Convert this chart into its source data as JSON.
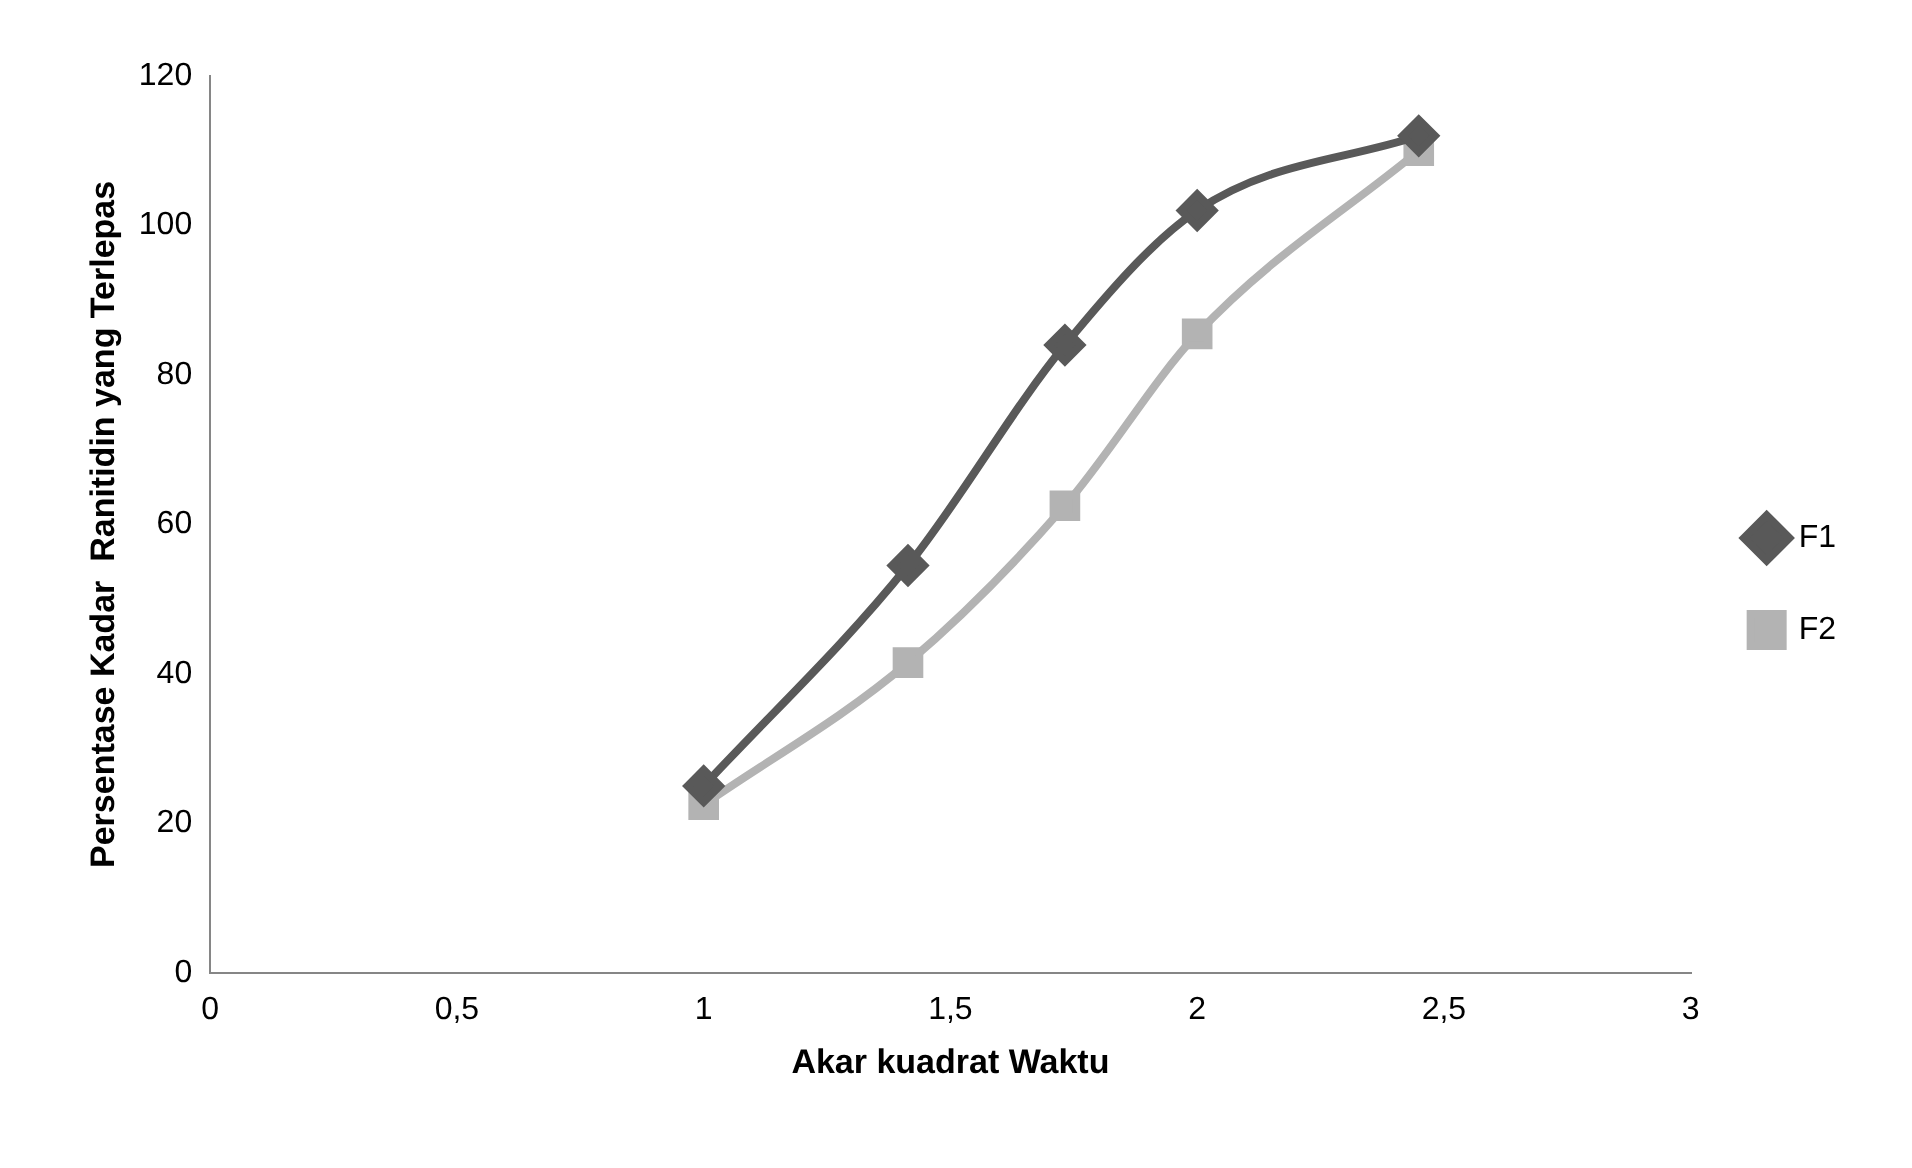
{
  "chart_data": {
    "type": "line",
    "xlabel": "Akar kuadrat Waktu",
    "ylabel": "Persentase Kadar  Ranitidin yang Terlepas",
    "xlim": [
      0,
      3
    ],
    "xticks": [
      0,
      {
        "value": 0.5,
        "label": "0,5"
      },
      1,
      {
        "value": 1.5,
        "label": "1,5"
      },
      2,
      {
        "value": 2.5,
        "label": "2,5"
      },
      3
    ],
    "ylim": [
      0,
      120
    ],
    "yticks": [
      0,
      20,
      40,
      60,
      80,
      100,
      120
    ],
    "grid": false,
    "legend": "right",
    "series": [
      {
        "name": "F1",
        "color": "#595959",
        "marker": "diamond",
        "x": [
          1,
          1.414,
          1.732,
          2,
          2.449
        ],
        "values": [
          25,
          54.5,
          84,
          102,
          112
        ]
      },
      {
        "name": "F2",
        "color": "#b3b3b3",
        "marker": "square",
        "x": [
          1,
          1.414,
          1.732,
          2,
          2.449
        ],
        "values": [
          22.5,
          41.5,
          62.5,
          85.5,
          110
        ]
      }
    ]
  }
}
